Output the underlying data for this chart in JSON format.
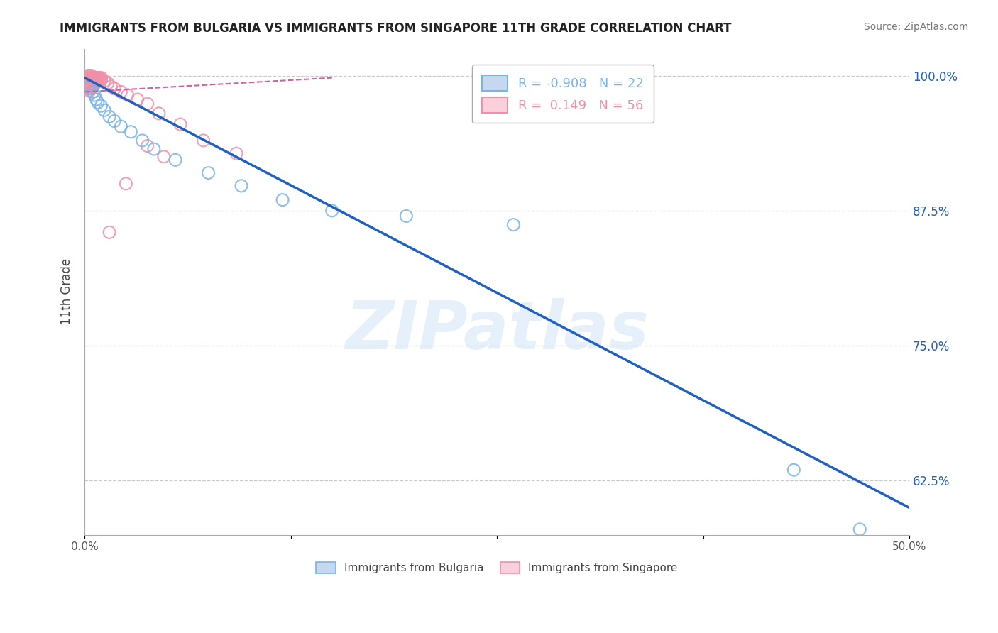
{
  "title": "IMMIGRANTS FROM BULGARIA VS IMMIGRANTS FROM SINGAPORE 11TH GRADE CORRELATION CHART",
  "source": "Source: ZipAtlas.com",
  "ylabel": "11th Grade",
  "xlim": [
    0.0,
    0.5
  ],
  "ylim": [
    0.575,
    1.025
  ],
  "xticks": [
    0.0,
    0.125,
    0.25,
    0.375,
    0.5
  ],
  "xtick_labels": [
    "0.0%",
    "",
    "",
    "",
    "50.0%"
  ],
  "yticks": [
    0.625,
    0.75,
    0.875,
    1.0
  ],
  "ytick_labels": [
    "62.5%",
    "75.0%",
    "87.5%",
    "100.0%"
  ],
  "legend_r_blue": "R = -0.908",
  "legend_n_blue": "N = 22",
  "legend_r_pink": "R =  0.149",
  "legend_n_pink": "N = 56",
  "blue_scatter": [
    [
      0.003,
      0.99
    ],
    [
      0.005,
      0.985
    ],
    [
      0.006,
      0.982
    ],
    [
      0.007,
      0.978
    ],
    [
      0.008,
      0.975
    ],
    [
      0.01,
      0.972
    ],
    [
      0.012,
      0.968
    ],
    [
      0.015,
      0.962
    ],
    [
      0.018,
      0.958
    ],
    [
      0.022,
      0.953
    ],
    [
      0.028,
      0.948
    ],
    [
      0.035,
      0.94
    ],
    [
      0.042,
      0.932
    ],
    [
      0.055,
      0.922
    ],
    [
      0.075,
      0.91
    ],
    [
      0.095,
      0.898
    ],
    [
      0.12,
      0.885
    ],
    [
      0.15,
      0.875
    ],
    [
      0.195,
      0.87
    ],
    [
      0.26,
      0.862
    ],
    [
      0.43,
      0.635
    ],
    [
      0.47,
      0.58
    ]
  ],
  "pink_scatter": [
    [
      0.002,
      1.0
    ],
    [
      0.002,
      0.998
    ],
    [
      0.002,
      0.996
    ],
    [
      0.002,
      0.994
    ],
    [
      0.002,
      0.992
    ],
    [
      0.002,
      0.99
    ],
    [
      0.002,
      0.988
    ],
    [
      0.003,
      1.0
    ],
    [
      0.003,
      0.998
    ],
    [
      0.003,
      0.996
    ],
    [
      0.003,
      0.994
    ],
    [
      0.003,
      0.992
    ],
    [
      0.003,
      0.99
    ],
    [
      0.003,
      0.988
    ],
    [
      0.003,
      0.986
    ],
    [
      0.004,
      1.0
    ],
    [
      0.004,
      0.998
    ],
    [
      0.004,
      0.996
    ],
    [
      0.004,
      0.994
    ],
    [
      0.004,
      0.992
    ],
    [
      0.004,
      0.99
    ],
    [
      0.004,
      0.988
    ],
    [
      0.005,
      0.998
    ],
    [
      0.005,
      0.996
    ],
    [
      0.005,
      0.994
    ],
    [
      0.005,
      0.992
    ],
    [
      0.005,
      0.99
    ],
    [
      0.006,
      0.998
    ],
    [
      0.006,
      0.996
    ],
    [
      0.006,
      0.994
    ],
    [
      0.006,
      0.992
    ],
    [
      0.007,
      0.998
    ],
    [
      0.007,
      0.996
    ],
    [
      0.007,
      0.994
    ],
    [
      0.008,
      0.998
    ],
    [
      0.008,
      0.996
    ],
    [
      0.009,
      0.998
    ],
    [
      0.009,
      0.996
    ],
    [
      0.01,
      0.998
    ],
    [
      0.01,
      0.996
    ],
    [
      0.012,
      0.995
    ],
    [
      0.014,
      0.993
    ],
    [
      0.016,
      0.99
    ],
    [
      0.018,
      0.988
    ],
    [
      0.022,
      0.985
    ],
    [
      0.026,
      0.982
    ],
    [
      0.032,
      0.978
    ],
    [
      0.038,
      0.974
    ],
    [
      0.045,
      0.965
    ],
    [
      0.058,
      0.955
    ],
    [
      0.072,
      0.94
    ],
    [
      0.092,
      0.928
    ],
    [
      0.038,
      0.935
    ],
    [
      0.048,
      0.925
    ],
    [
      0.025,
      0.9
    ],
    [
      0.015,
      0.855
    ]
  ],
  "blue_line_x": [
    0.0,
    0.5
  ],
  "blue_line_y": [
    0.998,
    0.6
  ],
  "pink_line_x": [
    0.0,
    0.15
  ],
  "pink_line_y": [
    0.985,
    0.998
  ],
  "scatter_size": 150,
  "blue_color": "#7ab3e8",
  "pink_color": "#f090a8",
  "blue_line_color": "#2060c0",
  "pink_line_color": "#d060a0",
  "blue_fill_color": "#c5d8f0",
  "pink_fill_color": "#fad0dc",
  "watermark": "ZIPatlas",
  "background_color": "#ffffff",
  "grid_color": "#c8c8d8"
}
